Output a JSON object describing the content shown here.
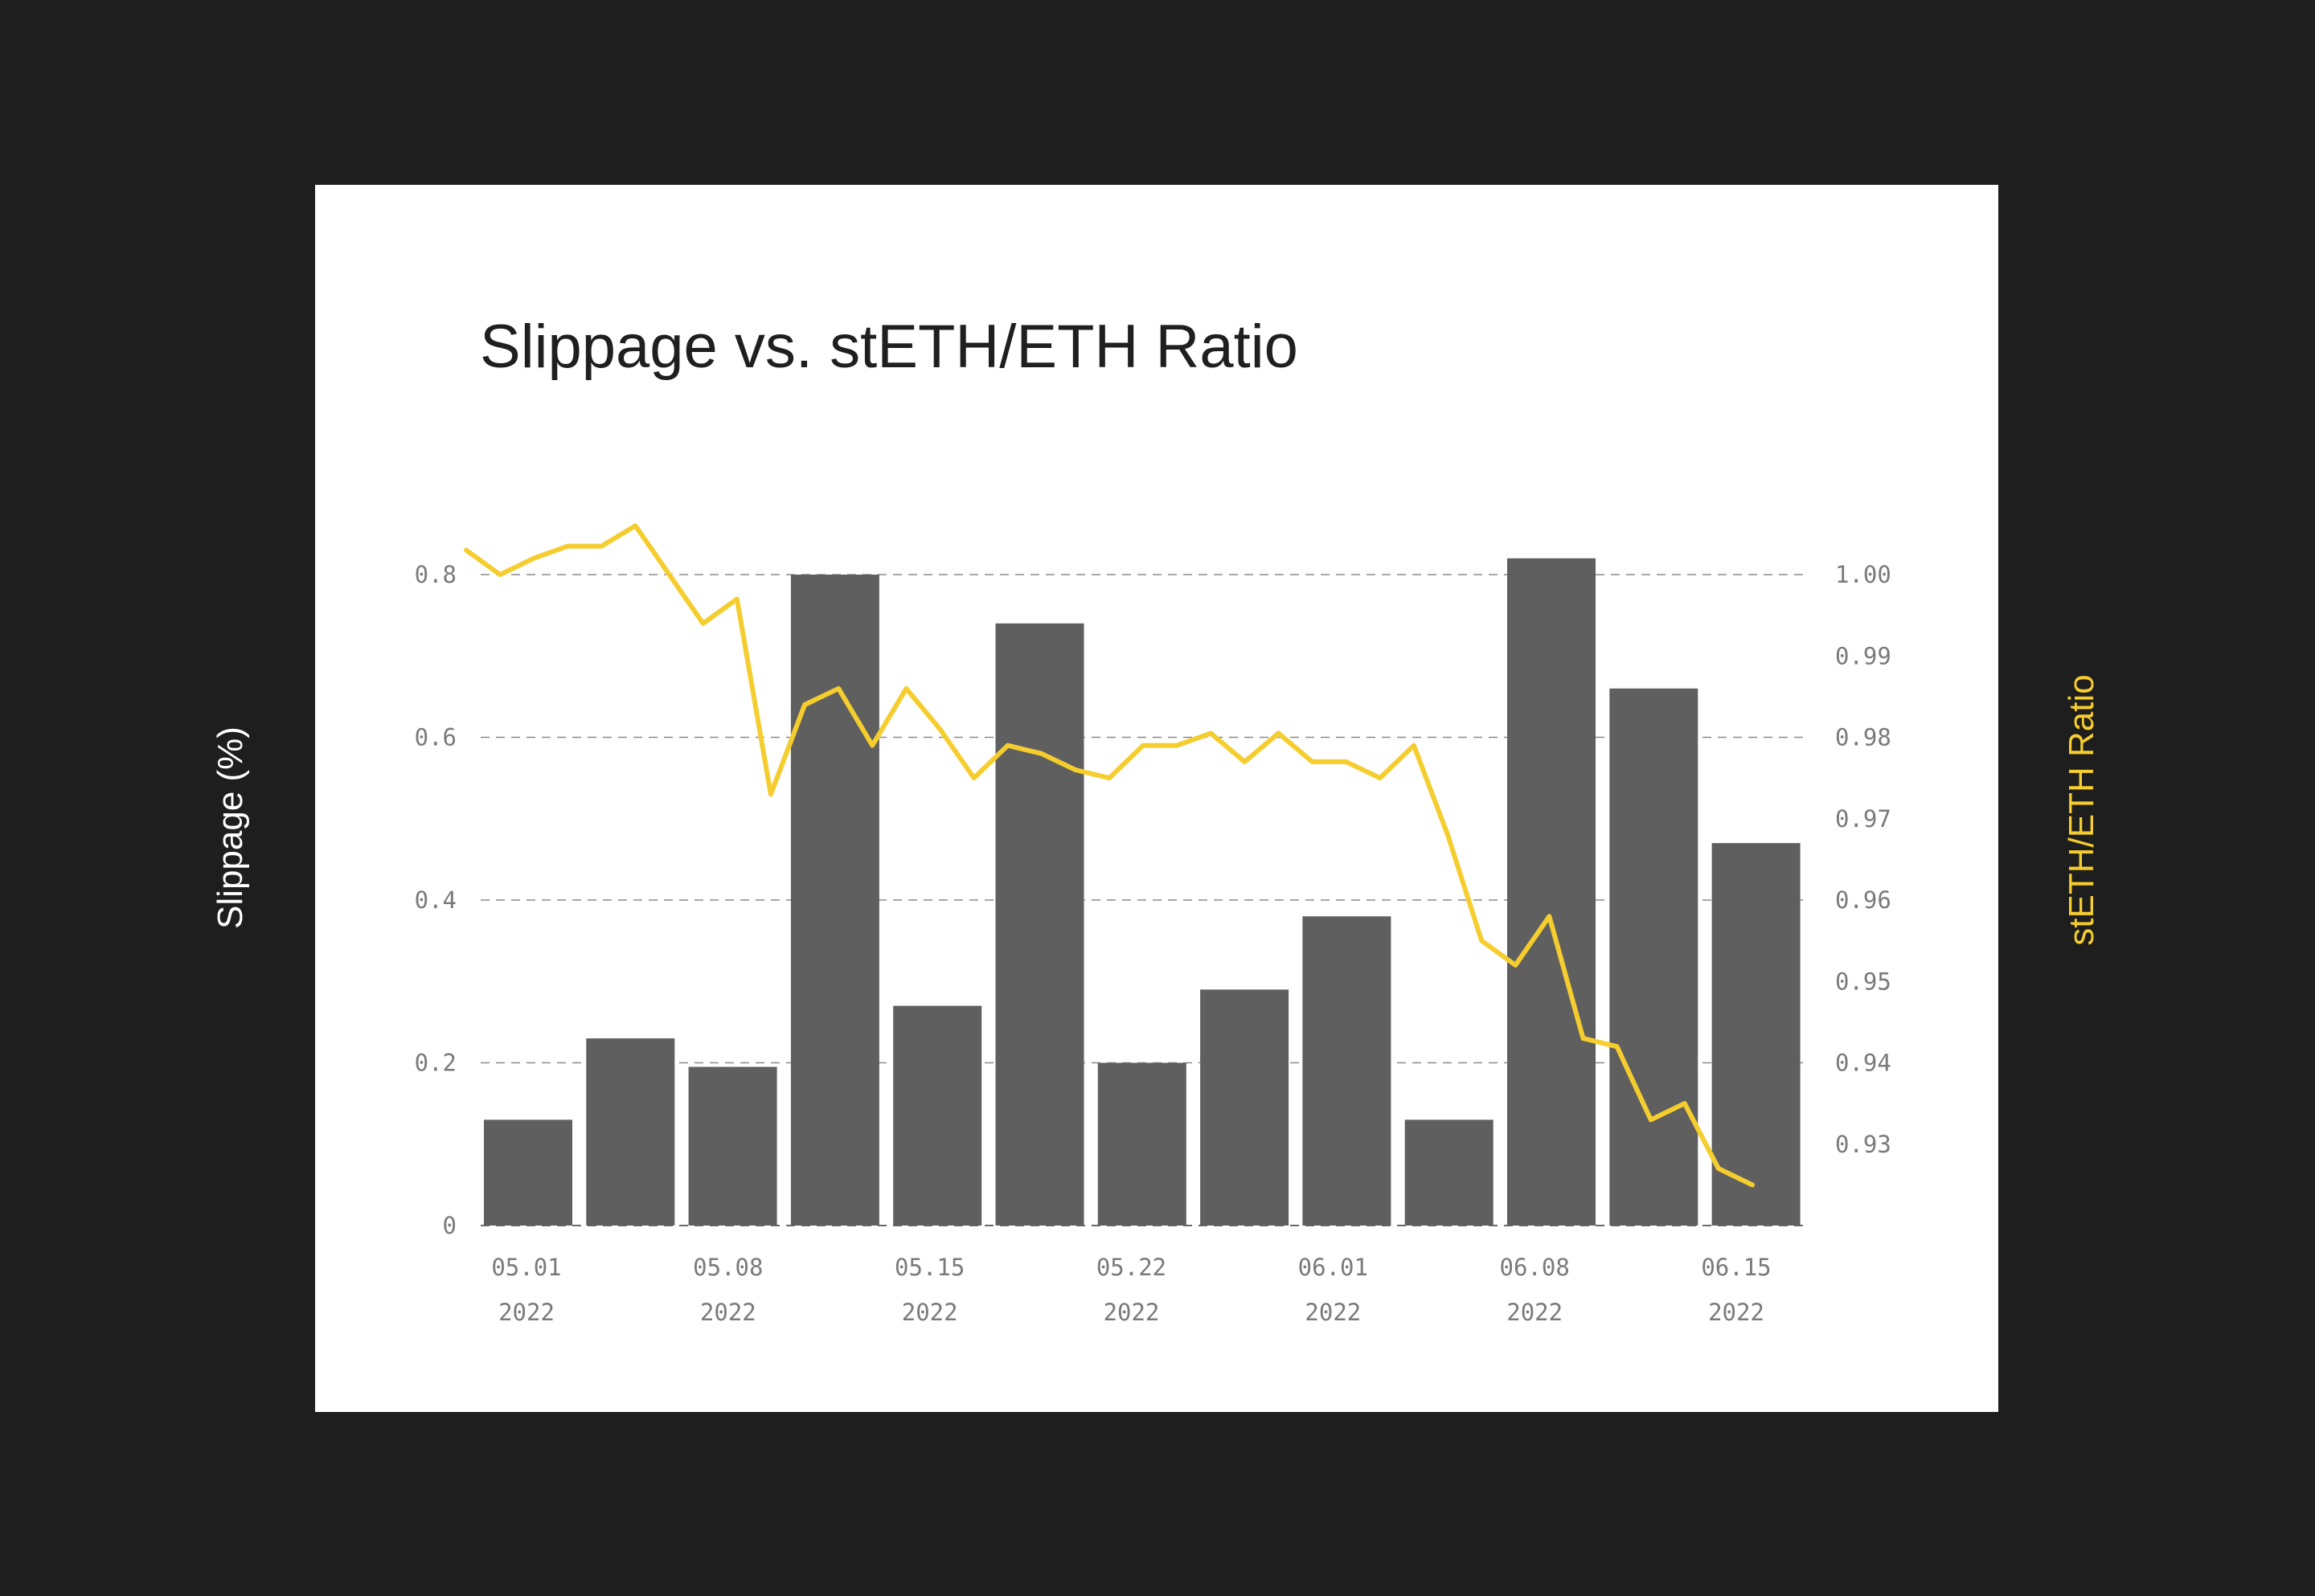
{
  "chart_data": {
    "type": "bar",
    "title": "Slippage vs. stETH/ETH Ratio",
    "ylabel": "Slippage (%)",
    "y2label": "stETH/ETH Ratio",
    "ylim": [
      0,
      0.8
    ],
    "y2lim": [
      0.92,
      1.0
    ],
    "grid": true,
    "y_ticks": [
      "0",
      "0.2",
      "0.4",
      "0.6",
      "0.8"
    ],
    "y2_ticks": [
      "0.93",
      "0.94",
      "0.95",
      "0.96",
      "0.97",
      "0.98",
      "0.99",
      "1.00"
    ],
    "x_ticks": [
      {
        "date": "05.01",
        "year": "2022"
      },
      {
        "date": "05.08",
        "year": "2022"
      },
      {
        "date": "05.15",
        "year": "2022"
      },
      {
        "date": "05.22",
        "year": "2022"
      },
      {
        "date": "06.01",
        "year": "2022"
      },
      {
        "date": "06.08",
        "year": "2022"
      },
      {
        "date": "06.15",
        "year": "2022"
      }
    ],
    "series": [
      {
        "kind": "bar",
        "color": "#5f5f5f",
        "values": [
          0.13,
          0.23,
          0.195,
          0.8,
          0.27,
          0.74,
          0.2,
          0.29,
          0.38,
          0.13,
          0.82,
          0.66,
          0.47
        ]
      },
      {
        "kind": "line",
        "color": "#f5cd2e",
        "values": [
          1.003,
          1.0,
          1.002,
          1.0035,
          1.0035,
          1.006,
          1.0,
          0.994,
          0.997,
          0.973,
          0.984,
          0.986,
          0.979,
          0.986,
          0.981,
          0.975,
          0.979,
          0.978,
          0.976,
          0.975,
          0.979,
          0.979,
          0.9805,
          0.977,
          0.9805,
          0.977,
          0.977,
          0.975,
          0.979,
          0.968,
          0.955,
          0.952,
          0.958,
          0.943,
          0.942,
          0.933,
          0.935,
          0.927,
          0.925
        ]
      }
    ]
  }
}
